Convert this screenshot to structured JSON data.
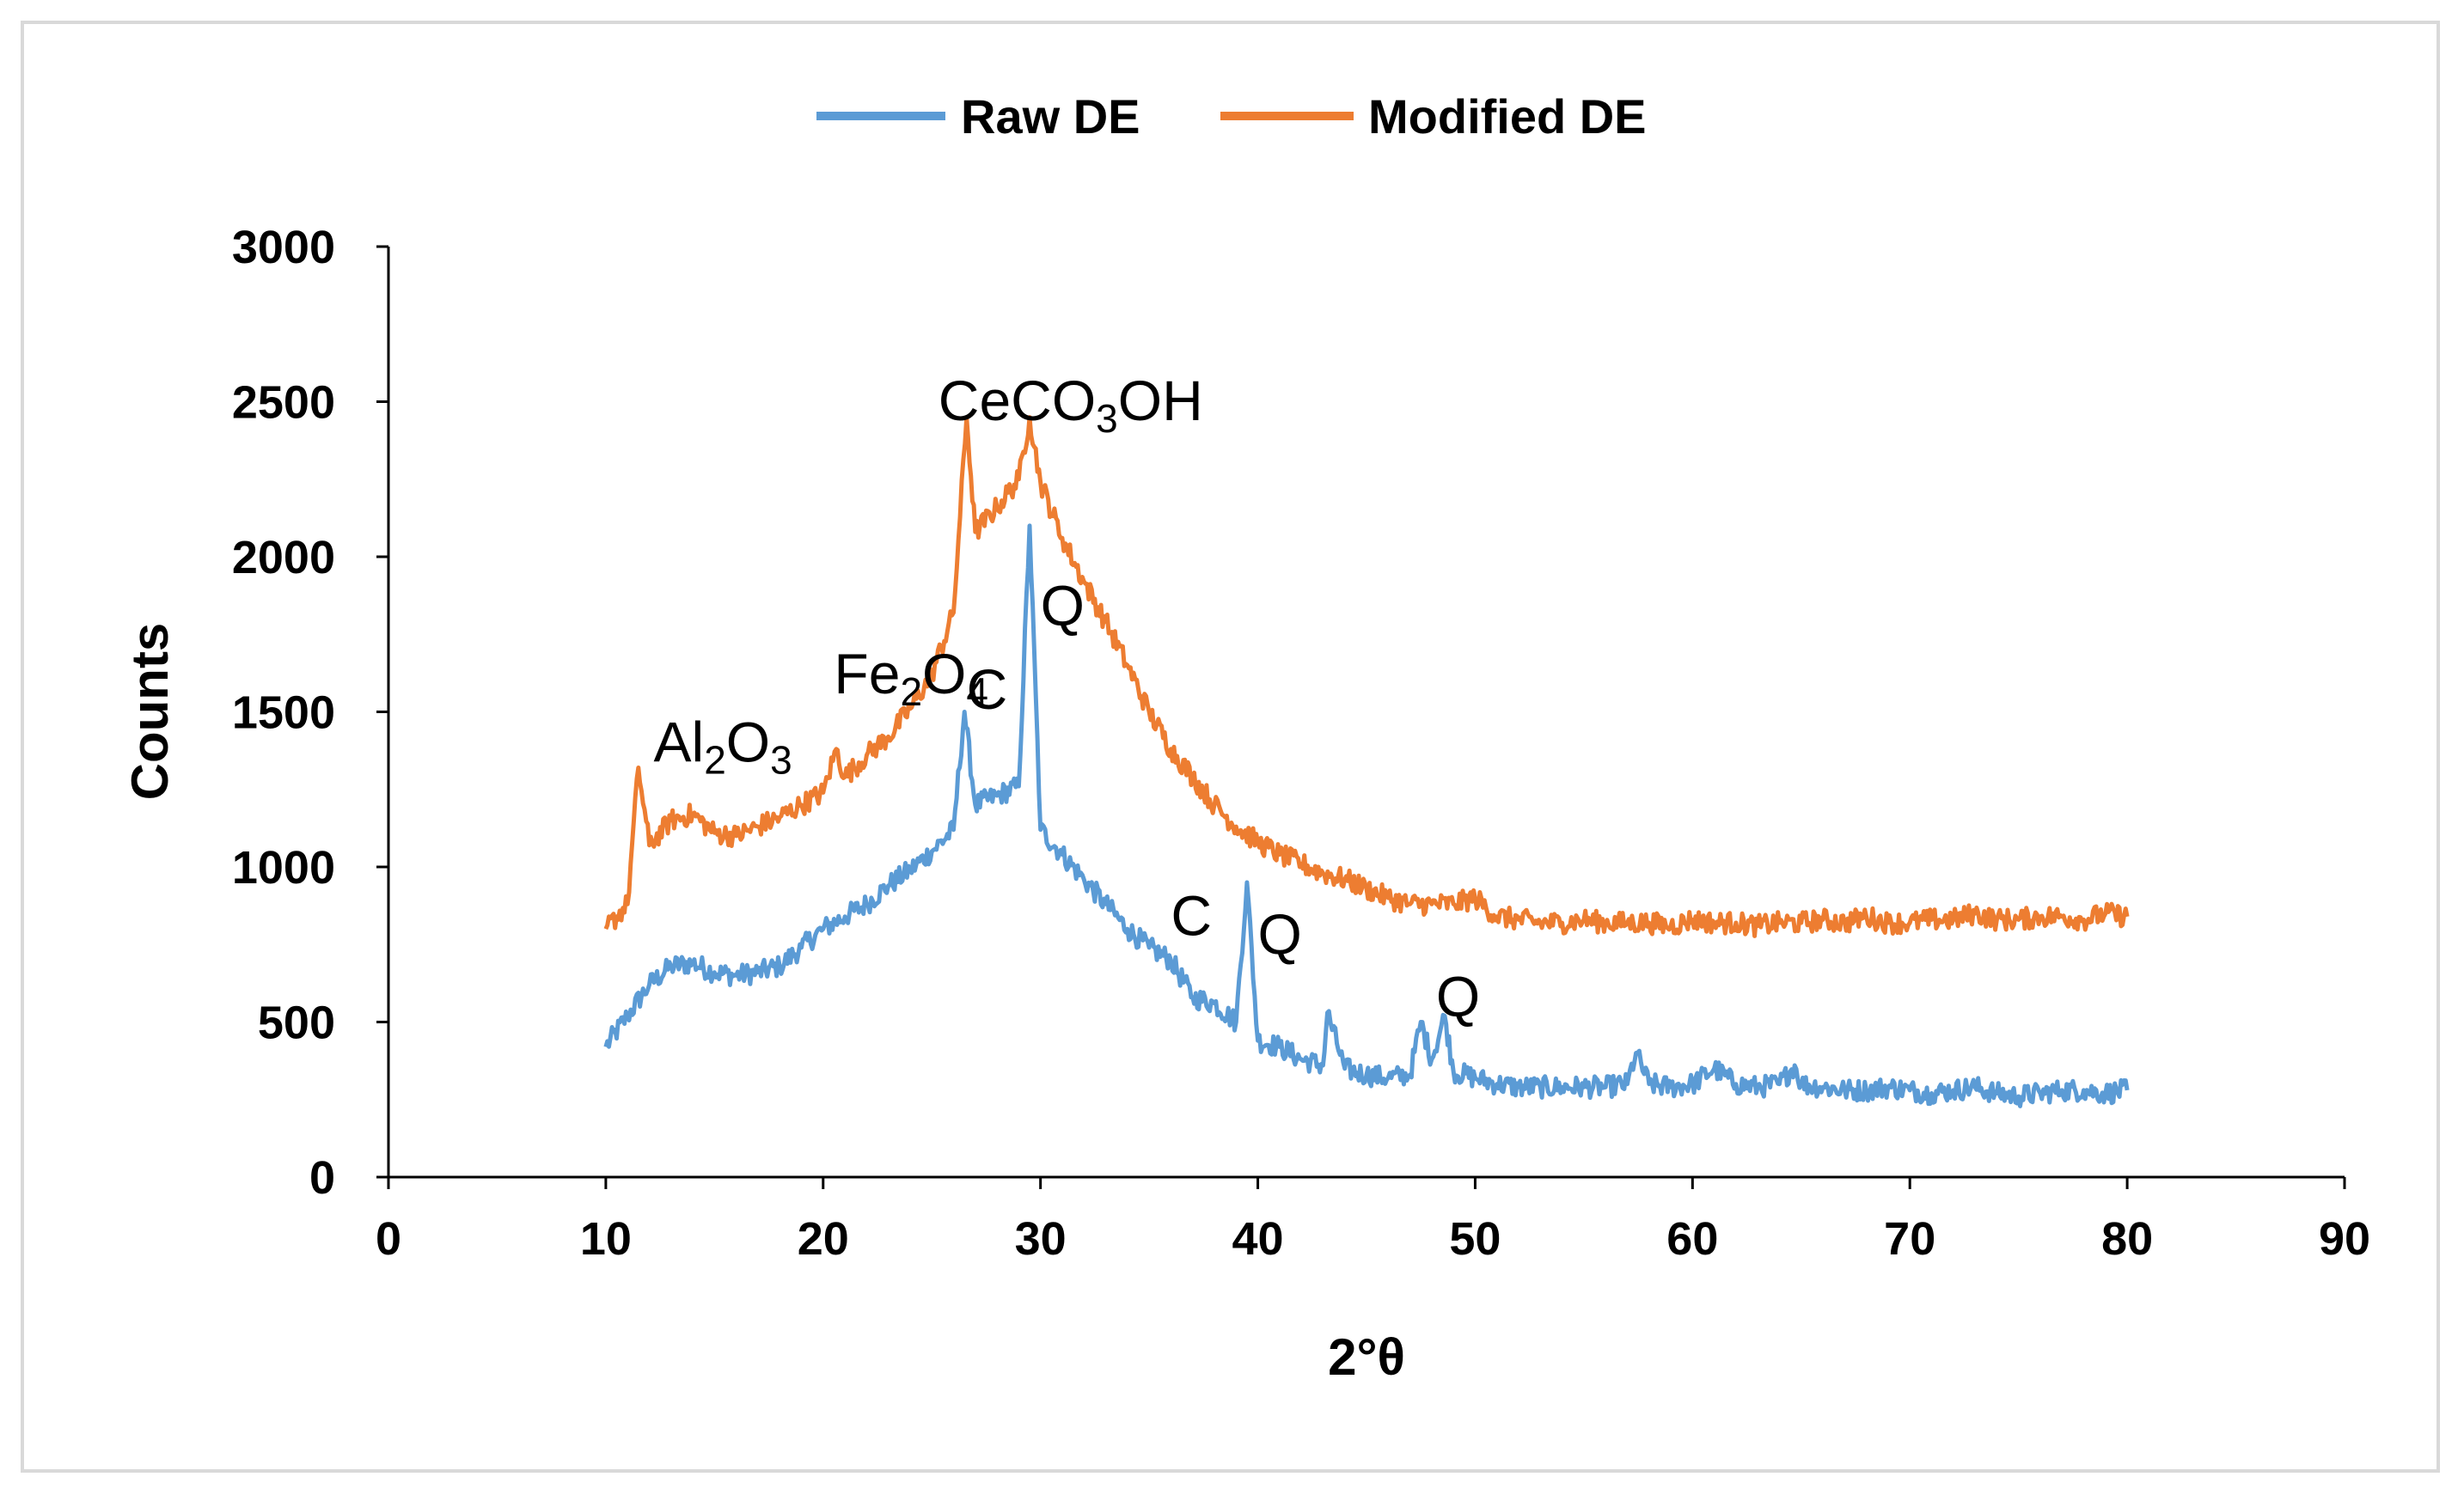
{
  "chart_data": {
    "type": "line",
    "title": "",
    "xlabel": "2°θ",
    "ylabel": "Counts",
    "xlim": [
      0,
      90
    ],
    "ylim": [
      0,
      3000
    ],
    "xticks": [
      "0",
      "10",
      "20",
      "30",
      "40",
      "50",
      "60",
      "70",
      "80",
      "90"
    ],
    "yticks": [
      "0",
      "500",
      "1000",
      "1500",
      "2000",
      "2500",
      "3000"
    ],
    "grid": false,
    "legend_position": "top-center",
    "series": [
      {
        "name": "Raw DE",
        "color": "#5B9BD5",
        "x": [
          10,
          11,
          12,
          13,
          14,
          15,
          16,
          17,
          18,
          19,
          20,
          21,
          22,
          23,
          24,
          25,
          26,
          26.5,
          27,
          28,
          29,
          29.5,
          30,
          31,
          32,
          33,
          34,
          35,
          36,
          37,
          38,
          39,
          39.5,
          40,
          41,
          42,
          43,
          43.2,
          44,
          45,
          46,
          47,
          47.5,
          48,
          48.6,
          49,
          50,
          51,
          52,
          53,
          54,
          55,
          56,
          57,
          57.4,
          58,
          59,
          60,
          61,
          62,
          63,
          64,
          64.7,
          65,
          66,
          67,
          68,
          69,
          70,
          71,
          72,
          73,
          74,
          75,
          76,
          77,
          78,
          79,
          80
        ],
        "y": [
          420,
          520,
          620,
          680,
          690,
          660,
          650,
          660,
          680,
          740,
          800,
          840,
          880,
          940,
          990,
          1050,
          1120,
          1500,
          1200,
          1230,
          1260,
          2100,
          1120,
          1040,
          960,
          880,
          800,
          740,
          700,
          580,
          560,
          500,
          950,
          440,
          420,
          380,
          360,
          530,
          350,
          330,
          320,
          330,
          500,
          380,
          520,
          340,
          320,
          300,
          290,
          290,
          290,
          290,
          290,
          300,
          400,
          300,
          290,
          300,
          350,
          300,
          290,
          300,
          360,
          300,
          290,
          280,
          280,
          290,
          280,
          270,
          280,
          290,
          270,
          260,
          270,
          280,
          280,
          270,
          280
        ]
      },
      {
        "name": "Modified DE",
        "color": "#ED7D31",
        "x": [
          10,
          11,
          11.5,
          12,
          13,
          14,
          15,
          16,
          17,
          18,
          19,
          20,
          20.6,
          21,
          22,
          23,
          24,
          25,
          26,
          26.6,
          27,
          28,
          29,
          29.5,
          30,
          31,
          32,
          33,
          34,
          35,
          36,
          37,
          38,
          39,
          40,
          41,
          42,
          43,
          44,
          45,
          46,
          47,
          48,
          49,
          50,
          51,
          52,
          53,
          54,
          55,
          56,
          57,
          58,
          59,
          60,
          61,
          62,
          63,
          64,
          65,
          66,
          67,
          68,
          69,
          70,
          71,
          72,
          73,
          74,
          75,
          76,
          77,
          78,
          79,
          80
        ],
        "y": [
          800,
          880,
          1320,
          1070,
          1150,
          1170,
          1110,
          1100,
          1130,
          1160,
          1200,
          1240,
          1380,
          1290,
          1360,
          1420,
          1510,
          1620,
          1820,
          2450,
          2080,
          2160,
          2250,
          2450,
          2240,
          2060,
          1920,
          1790,
          1650,
          1500,
          1380,
          1290,
          1200,
          1130,
          1080,
          1040,
          1010,
          980,
          960,
          930,
          900,
          880,
          880,
          880,
          900,
          840,
          830,
          820,
          820,
          830,
          820,
          820,
          820,
          810,
          830,
          820,
          820,
          810,
          820,
          820,
          830,
          820,
          840,
          820,
          820,
          830,
          830,
          850,
          830,
          830,
          840,
          840,
          830,
          850,
          840
        ]
      }
    ],
    "annotations": [
      {
        "label": "Al",
        "sub1": "2",
        "mid": "O",
        "sub2": "3",
        "x": 12.2,
        "y": 1340
      },
      {
        "label": "Fe",
        "sub1": "2",
        "mid": "O",
        "sub2": "4",
        "x": 20.5,
        "y": 1560
      },
      {
        "label": "C",
        "x": 26.6,
        "y": 1510
      },
      {
        "label": "Ce",
        "sub1": "",
        "mid": "CO",
        "sub2": "3",
        "tail": "OH",
        "x": 25.3,
        "y": 2440
      },
      {
        "label": "Q",
        "x": 30.0,
        "y": 1780
      },
      {
        "label": "C",
        "x": 36.0,
        "y": 780
      },
      {
        "label": "Q",
        "x": 40.0,
        "y": 720
      },
      {
        "label": "Q",
        "x": 48.2,
        "y": 520
      }
    ]
  }
}
